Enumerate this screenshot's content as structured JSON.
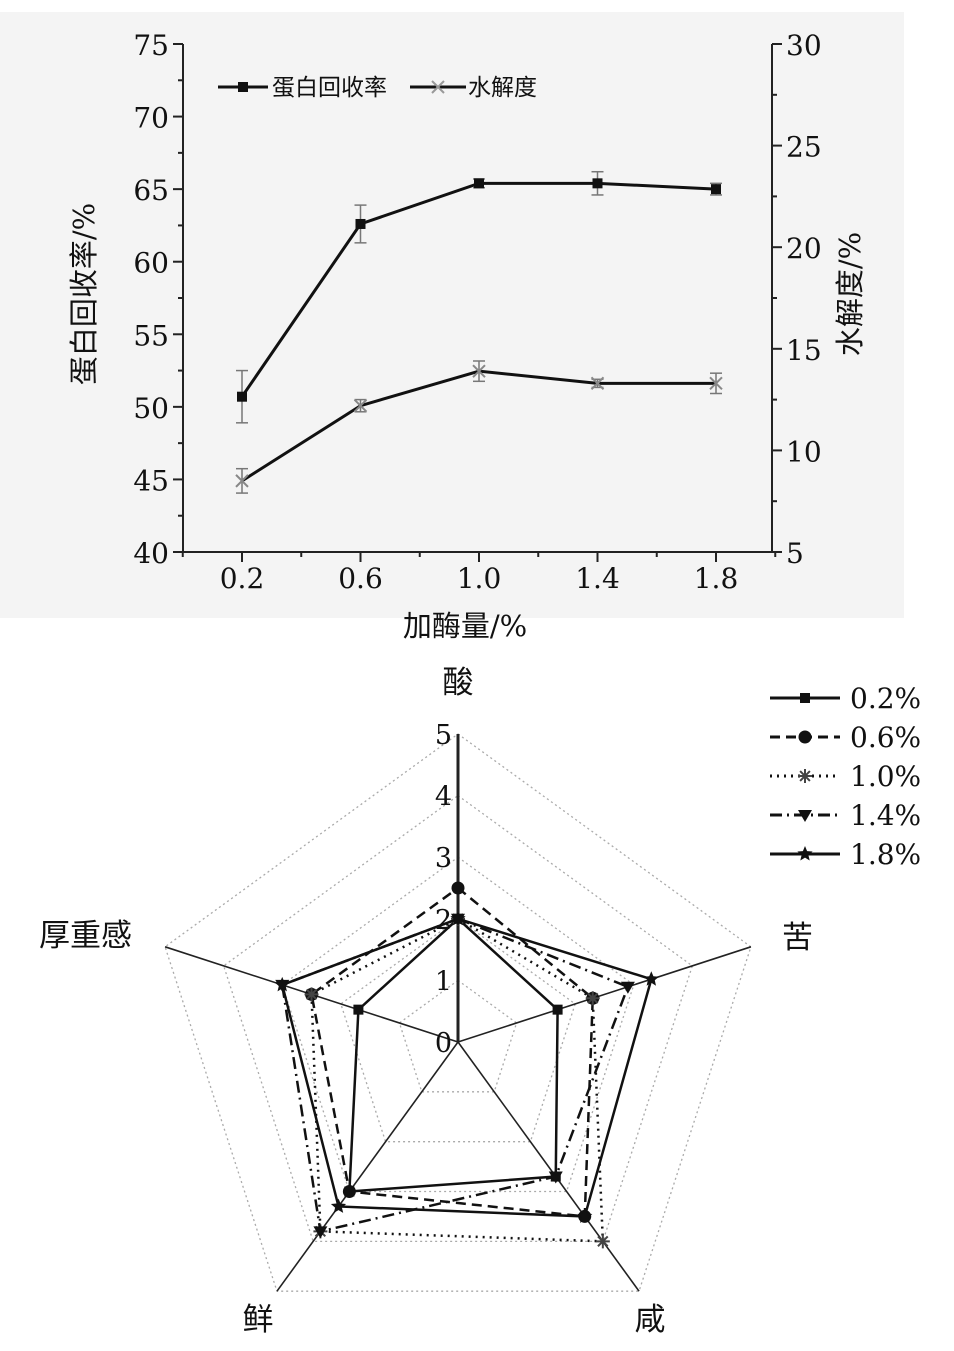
{
  "chart_data": [
    {
      "type": "line",
      "x": [
        "0.2",
        "0.6",
        "1.0",
        "1.4",
        "1.8"
      ],
      "xlabel": "加酶量/%",
      "ylabel": "蛋白回收率/%",
      "y2label": "水解度/%",
      "ylim": [
        40,
        75
      ],
      "y2lim": [
        5,
        30
      ],
      "yticks": [
        "40",
        "45",
        "50",
        "55",
        "60",
        "65",
        "70",
        "75"
      ],
      "y2ticks": [
        "5",
        "10",
        "15",
        "20",
        "25",
        "30"
      ],
      "legend": "top-left",
      "series": [
        {
          "name": "蛋白回收率",
          "axis": "left",
          "marker": "square",
          "values": [
            50.7,
            62.6,
            65.4,
            65.4,
            65.0
          ],
          "err": [
            1.8,
            1.3,
            0.3,
            0.8,
            0.4
          ]
        },
        {
          "name": "水解度",
          "axis": "right",
          "marker": "x",
          "values": [
            8.5,
            12.2,
            13.9,
            13.3,
            13.3
          ],
          "err": [
            0.6,
            0.3,
            0.5,
            0.2,
            0.5
          ]
        }
      ]
    },
    {
      "type": "radar",
      "axes": [
        "酸",
        "苦",
        "咸",
        "鲜",
        "厚重感"
      ],
      "rlim": [
        0,
        5
      ],
      "rticks": [
        "0",
        "1",
        "2",
        "3",
        "4",
        "5"
      ],
      "legend": "top-right",
      "series": [
        {
          "name": "0.2%",
          "marker": "square",
          "dash": "solid",
          "values": [
            2.0,
            1.7,
            2.7,
            3.0,
            1.7
          ]
        },
        {
          "name": "0.6%",
          "marker": "circle",
          "dash": "dash",
          "values": [
            2.5,
            2.3,
            3.5,
            3.0,
            2.5
          ]
        },
        {
          "name": "1.0%",
          "marker": "asterisk",
          "dash": "dot",
          "values": [
            2.0,
            2.3,
            4.0,
            3.8,
            2.5
          ]
        },
        {
          "name": "1.4%",
          "marker": "triangle",
          "dash": "dashdot",
          "values": [
            2.0,
            2.9,
            2.7,
            3.8,
            3.0
          ]
        },
        {
          "name": "1.8%",
          "marker": "star",
          "dash": "solid",
          "values": [
            2.0,
            3.3,
            3.5,
            3.3,
            3.0
          ]
        }
      ]
    }
  ]
}
